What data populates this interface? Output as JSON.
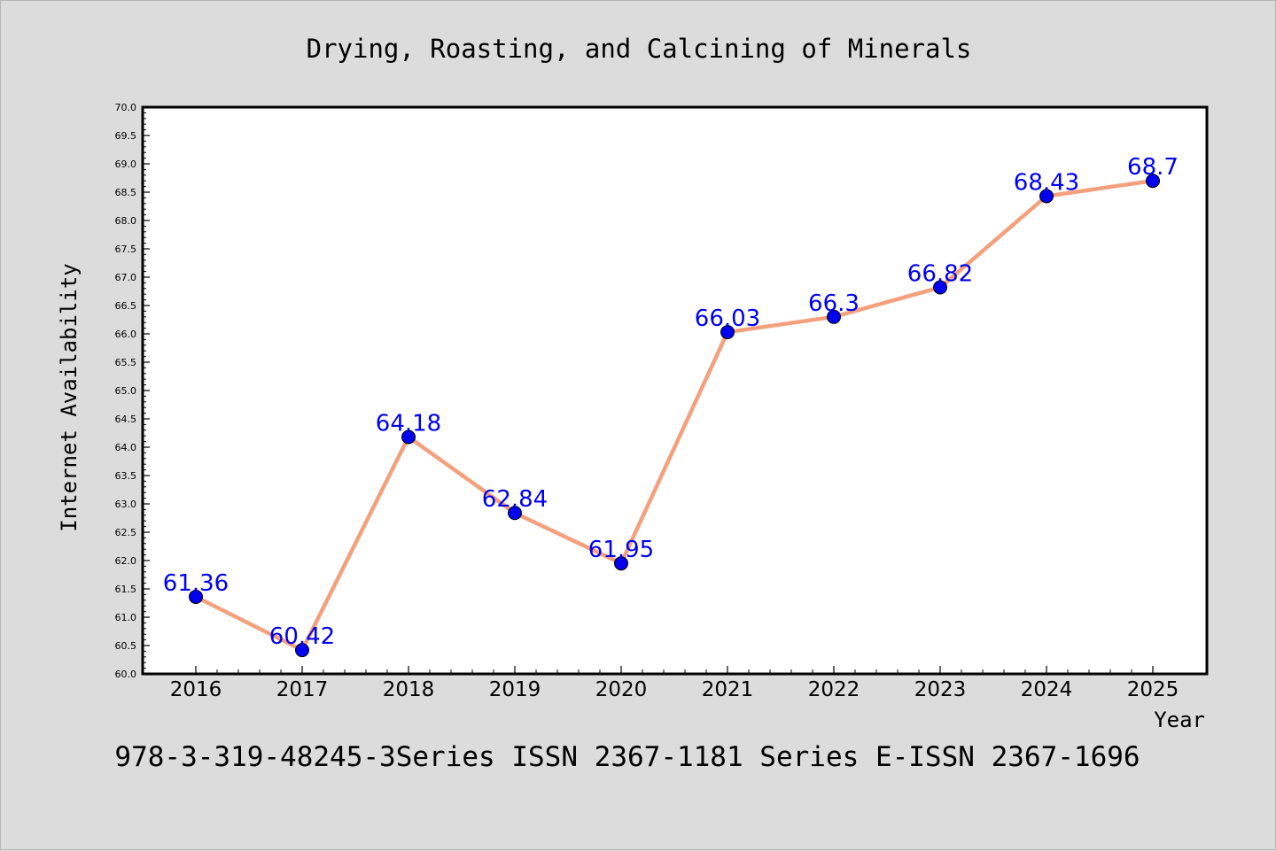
{
  "chart_data": {
    "type": "line",
    "title": "Drying, Roasting, and Calcining of Minerals",
    "xlabel": "Year",
    "ylabel": "Internet Availability",
    "ylim": [
      60.0,
      70.0
    ],
    "y_tick_step": 0.5,
    "y_tick_labels": [
      "60.0",
      "60.5",
      "61.0",
      "61.5",
      "62.0",
      "62.5",
      "63.0",
      "63.5",
      "64.0",
      "64.5",
      "65.0",
      "65.5",
      "66.0",
      "66.5",
      "67.0",
      "67.5",
      "68.0",
      "68.5",
      "69.0",
      "69.5",
      "70.0"
    ],
    "categories": [
      "2016",
      "2017",
      "2018",
      "2019",
      "2020",
      "2021",
      "2022",
      "2023",
      "2024",
      "2025"
    ],
    "series": [
      {
        "values": [
          61.36,
          60.42,
          64.18,
          62.84,
          61.95,
          66.03,
          66.3,
          66.82,
          68.43,
          68.7
        ],
        "data_labels": [
          "61.36",
          "60.42",
          "64.18",
          "62.84",
          "61.95",
          "66.03",
          "66.3",
          "66.82",
          "68.43",
          "68.7"
        ],
        "line_color": "#f4a07c",
        "marker_color": "#0000ee",
        "label_color": "#0000ee"
      }
    ],
    "grid": false,
    "legend": "none"
  },
  "footer_text": "978-3-319-48245-3Series ISSN 2367-1181 Series E-ISSN 2367-1696",
  "colors": {
    "background": "#dcdcdc",
    "plot_background": "#ffffff",
    "axis": "#000000"
  }
}
